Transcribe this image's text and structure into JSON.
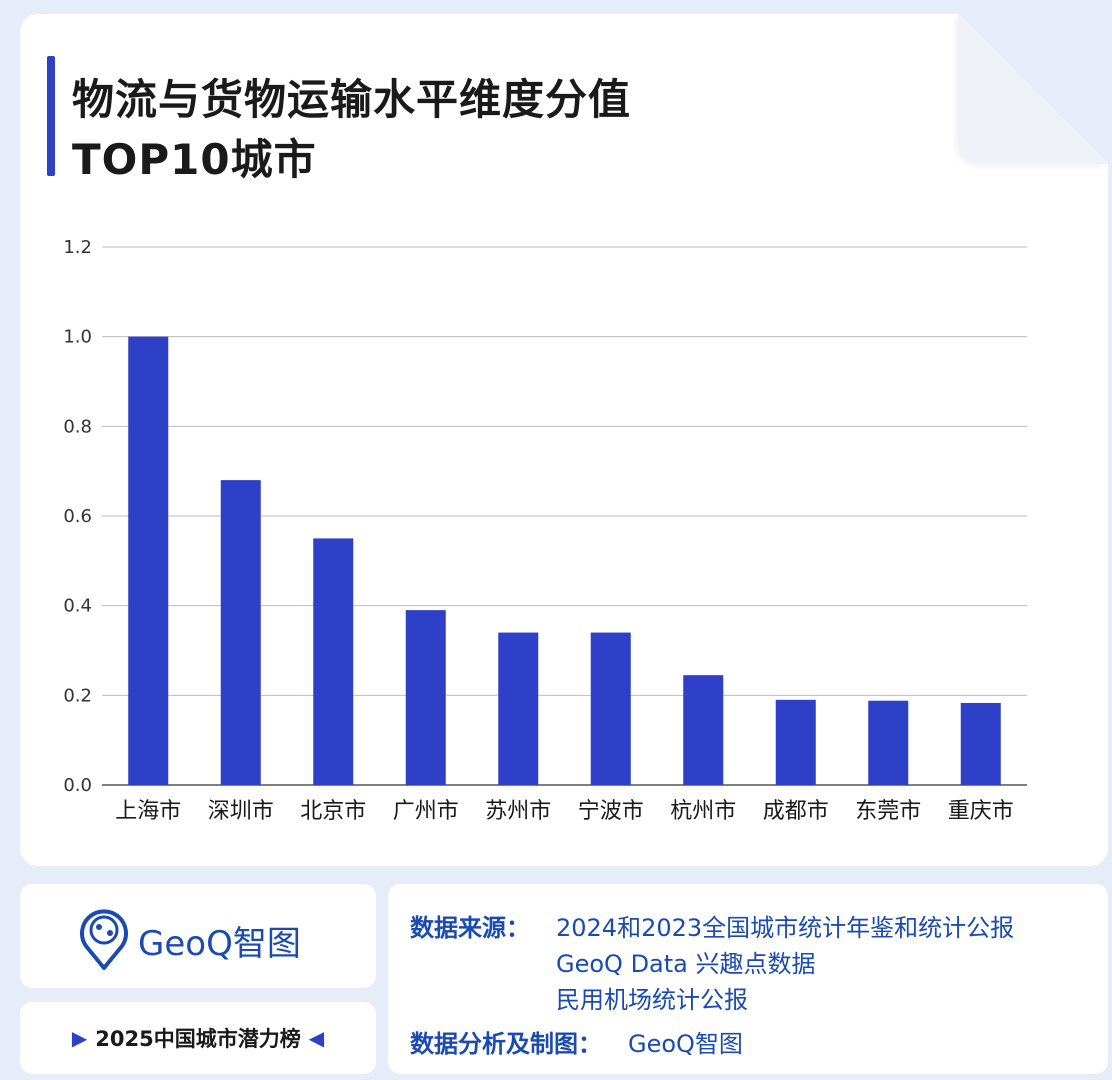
{
  "title": {
    "line1": "物流与货物运输水平维度分值",
    "line2": "TOP10城市"
  },
  "chart_data": {
    "type": "bar",
    "categories": [
      "上海市",
      "深圳市",
      "北京市",
      "广州市",
      "苏州市",
      "宁波市",
      "杭州市",
      "成都市",
      "东莞市",
      "重庆市"
    ],
    "values": [
      1.0,
      0.68,
      0.55,
      0.39,
      0.34,
      0.34,
      0.245,
      0.19,
      0.188,
      0.183
    ],
    "ylim": [
      0,
      1.2
    ],
    "yticks": [
      "0.0",
      "0.2",
      "0.4",
      "0.6",
      "0.8",
      "1.0",
      "1.2"
    ],
    "grid": true,
    "bar_color": "#2e3fc8"
  },
  "brand": {
    "logo_text": "GeoQ智图",
    "brand_color": "#1b4bb0"
  },
  "ranking": {
    "label": "2025中国城市潜力榜"
  },
  "source": {
    "data_source_label": "数据来源：",
    "data_sources": [
      "2024和2023全国城市统计年鉴和统计公报",
      "GeoQ Data 兴趣点数据",
      "民用机场统计公报"
    ],
    "analysis_label": "数据分析及制图：",
    "analysis_value": "GeoQ智图"
  }
}
